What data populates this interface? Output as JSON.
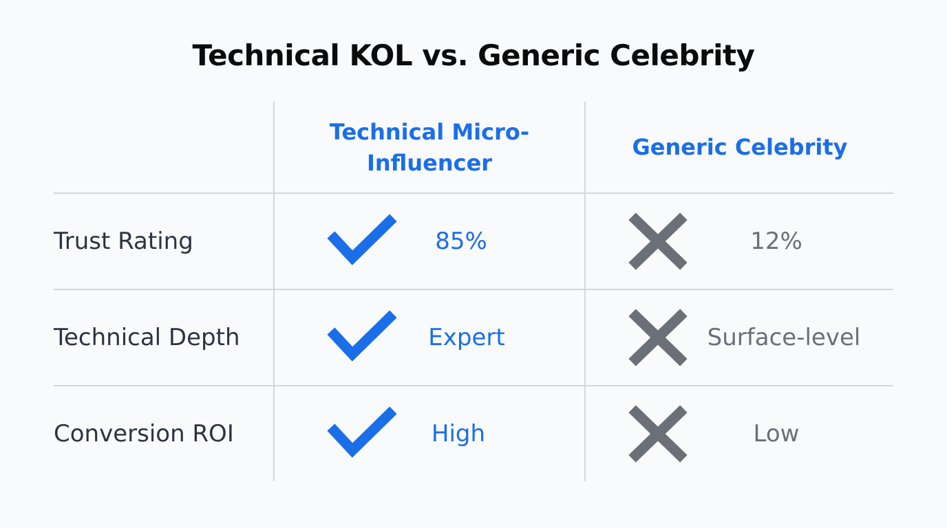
{
  "title": "Technical KOL vs. Generic Celebrity",
  "table": {
    "header": [
      "Technical Micro-Influencer",
      "Generic Celebrity"
    ],
    "rows": [
      [
        "Trust Rating",
        "85%",
        "12%"
      ],
      [
        "Technical Depth",
        "Expert",
        "Surface-level"
      ],
      [
        "Conversion ROI",
        "High",
        "Low"
      ]
    ]
  }
}
